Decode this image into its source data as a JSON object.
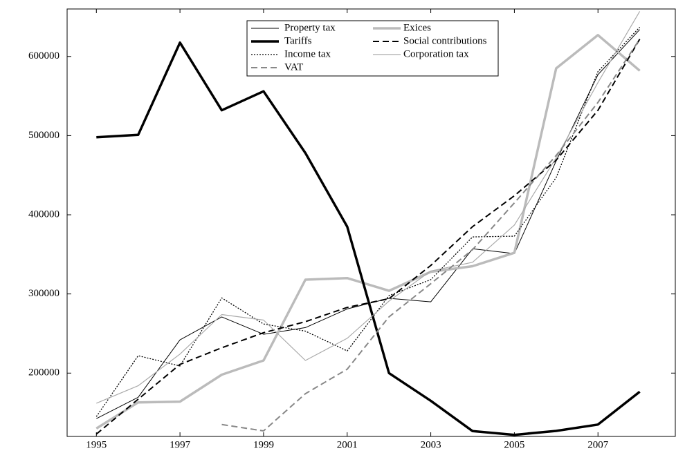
{
  "chart_data": {
    "type": "line",
    "x": [
      1995,
      1996,
      1997,
      1998,
      1999,
      2000,
      2001,
      2002,
      2003,
      2004,
      2005,
      2006,
      2007,
      2008
    ],
    "series": [
      {
        "name": "Property tax",
        "color": "#000000",
        "width": 1,
        "dash": "solid",
        "values": [
          142500,
          169500,
          242000,
          271000,
          249000,
          257500,
          281000,
          294500,
          290000,
          357000,
          351000,
          468000,
          577000,
          634000
        ]
      },
      {
        "name": "Exices",
        "color": "#bbbbbb",
        "width": 3.5,
        "dash": "solid",
        "values": [
          130000,
          163000,
          164000,
          198000,
          216000,
          318000,
          320000,
          304000,
          328000,
          335000,
          352000,
          585000,
          627000,
          582000
        ]
      },
      {
        "name": "Tariffs",
        "color": "#000000",
        "width": 3.5,
        "dash": "solid",
        "values": [
          498000,
          501000,
          617500,
          532000,
          556000,
          478000,
          385000,
          200000,
          165000,
          126700,
          122000,
          127000,
          135000,
          176500
        ]
      },
      {
        "name": "Social contributions",
        "color": "#000000",
        "width": 2,
        "dash": "dashed",
        "values": [
          123000,
          167000,
          211000,
          232000,
          251000,
          265000,
          283000,
          294000,
          336000,
          385000,
          424000,
          469000,
          532000,
          622000
        ]
      },
      {
        "name": "Income tax",
        "color": "#000000",
        "width": 1.3,
        "dash": "dotted",
        "values": [
          145000,
          222000,
          209000,
          295000,
          262000,
          253000,
          228000,
          298000,
          318000,
          372000,
          373000,
          447000,
          581000,
          637000
        ]
      },
      {
        "name": "Corporation tax",
        "color": "#aaaaaa",
        "width": 1.2,
        "dash": "solid",
        "values": [
          162000,
          184000,
          224000,
          274000,
          267000,
          216000,
          244000,
          291000,
          329000,
          340000,
          387000,
          472000,
          567000,
          657000
        ]
      },
      {
        "name": "VAT",
        "color": "#888888",
        "width": 2,
        "dash": "dashed",
        "values": [
          null,
          null,
          null,
          135000,
          127000,
          174000,
          205000,
          271000,
          313000,
          356000,
          415000,
          475000,
          542000,
          622000
        ]
      }
    ],
    "xlim": [
      1994.3,
      2008.85
    ],
    "xticks": [
      1995,
      1997,
      1999,
      2001,
      2003,
      2005,
      2007
    ],
    "ylim": [
      120000,
      660000
    ],
    "yticks": [
      200000,
      300000,
      400000,
      500000,
      600000
    ],
    "grid": false,
    "legend": "upper center"
  }
}
